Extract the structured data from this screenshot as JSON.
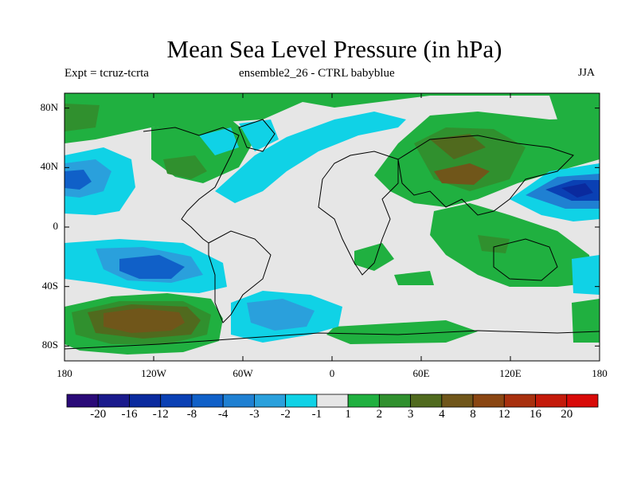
{
  "title": "Mean Sea Level Pressure (in hPa)",
  "subtitle_left": "Expt = tcruz-tcrta",
  "subtitle_center": "ensemble2_26 - CTRL babyblue",
  "subtitle_right": "JJA",
  "y_ticks": [
    {
      "label": "80N",
      "lat": 80
    },
    {
      "label": "40N",
      "lat": 40
    },
    {
      "label": "0",
      "lat": 0
    },
    {
      "label": "40S",
      "lat": -40
    },
    {
      "label": "80S",
      "lat": -80
    }
  ],
  "x_ticks": [
    {
      "label": "180",
      "lon": -180
    },
    {
      "label": "120W",
      "lon": -120
    },
    {
      "label": "60W",
      "lon": -60
    },
    {
      "label": "0",
      "lon": 0
    },
    {
      "label": "60E",
      "lon": 60
    },
    {
      "label": "120E",
      "lon": 120
    },
    {
      "label": "180",
      "lon": 180
    }
  ],
  "colorbar": {
    "colors": [
      "#2a0a78",
      "#1a1a8c",
      "#0a2a9e",
      "#0a40b4",
      "#1060c8",
      "#1f80d2",
      "#2aa0dc",
      "#10d2e6",
      "#e6e6e6",
      "#20b040",
      "#30902e",
      "#506a1e",
      "#70561a",
      "#8a4612",
      "#a8300e",
      "#c41a0a",
      "#d80a08"
    ],
    "labels": [
      "-20",
      "-16",
      "-12",
      "-8",
      "-4",
      "-3",
      "-2",
      "-1",
      "1",
      "2",
      "3",
      "4",
      "8",
      "12",
      "16",
      "20"
    ]
  },
  "chart_data": {
    "type": "map-contour",
    "title": "Mean Sea Level Pressure (in hPa)",
    "xlim": [
      -180,
      180
    ],
    "ylim": [
      -90,
      90
    ],
    "levels": [
      -20,
      -16,
      -12,
      -8,
      -4,
      -3,
      -2,
      -1,
      1,
      2,
      3,
      4,
      8,
      12,
      16,
      20
    ],
    "anomaly_regions": [
      {
        "region": "North Atlantic / E. North America",
        "sign": "negative",
        "approx_range": "-1 to -2"
      },
      {
        "region": "NE Pacific",
        "sign": "negative",
        "approx_range": "-1 to -4"
      },
      {
        "region": "NW Pacific (Japan)",
        "sign": "negative",
        "approx_range": "-1 to -8"
      },
      {
        "region": "South Pacific",
        "sign": "negative",
        "approx_range": "-1 to -4"
      },
      {
        "region": "South Atlantic",
        "sign": "negative",
        "approx_range": "-1 to -4"
      },
      {
        "region": "Eurasia / Central Asia",
        "sign": "positive",
        "approx_range": "1 to 4"
      },
      {
        "region": "Southeast Pacific (south of 50S)",
        "sign": "positive",
        "approx_range": "1 to 8"
      },
      {
        "region": "Maritime Continent / Australia",
        "sign": "positive",
        "approx_range": "1 to 3"
      },
      {
        "region": "Arctic",
        "sign": "positive",
        "approx_range": "1 to 3"
      },
      {
        "region": "Southern Africa / SW Indian Ocean",
        "sign": "positive",
        "approx_range": "1 to 2"
      }
    ]
  }
}
